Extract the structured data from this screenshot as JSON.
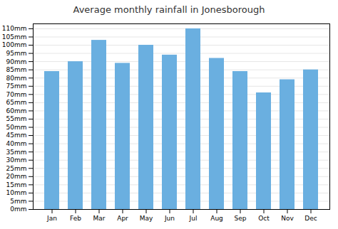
{
  "chart_data": {
    "type": "bar",
    "title": "Average monthly rainfall in Jonesborough",
    "categories": [
      "Jan",
      "Feb",
      "Mar",
      "Apr",
      "May",
      "Jun",
      "Jul",
      "Aug",
      "Sep",
      "Oct",
      "Nov",
      "Dec"
    ],
    "values": [
      84,
      90,
      103,
      89,
      100,
      94,
      110,
      92,
      84,
      71,
      79,
      85
    ],
    "color": "#6aafe0",
    "ylim": [
      0,
      113
    ],
    "yticks": [
      {
        "value": 0,
        "label": "0mm"
      },
      {
        "value": 5,
        "label": "5mm"
      },
      {
        "value": 10,
        "label": "10mm"
      },
      {
        "value": 15,
        "label": "15mm"
      },
      {
        "value": 20,
        "label": "20mm"
      },
      {
        "value": 25,
        "label": "25mm"
      },
      {
        "value": 30,
        "label": "30mm"
      },
      {
        "value": 35,
        "label": "35mm"
      },
      {
        "value": 40,
        "label": "40mm"
      },
      {
        "value": 45,
        "label": "45mm"
      },
      {
        "value": 50,
        "label": "50mm"
      },
      {
        "value": 55,
        "label": "55mm"
      },
      {
        "value": 60,
        "label": "60mm"
      },
      {
        "value": 65,
        "label": "65mm"
      },
      {
        "value": 70,
        "label": "70mm"
      },
      {
        "value": 75,
        "label": "75mm"
      },
      {
        "value": 80,
        "label": "80mm"
      },
      {
        "value": 85,
        "label": "85mm"
      },
      {
        "value": 90,
        "label": "90mm"
      },
      {
        "value": 95,
        "label": "95mm"
      },
      {
        "value": 100,
        "label": "100mm"
      },
      {
        "value": 105,
        "label": "105mm"
      },
      {
        "value": 110,
        "label": "110mm"
      }
    ],
    "grid": true
  }
}
